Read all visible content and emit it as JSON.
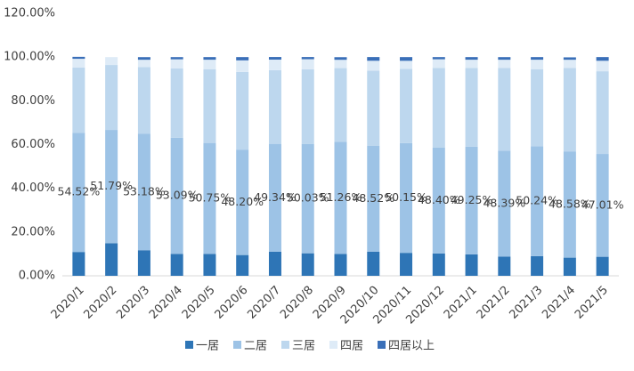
{
  "chart_data": {
    "type": "stacked_bar",
    "categories": [
      "2020/1",
      "2020/2",
      "2020/3",
      "2020/4",
      "2020/5",
      "2020/6",
      "2020/7",
      "2020/8",
      "2020/9",
      "2020/10",
      "2020/11",
      "2020/12",
      "2021/1",
      "2021/2",
      "2021/3",
      "2021/4",
      "2021/5"
    ],
    "series": [
      {
        "name": "一居",
        "color": "#2e75b6",
        "values": [
          10.9,
          14.9,
          11.7,
          10.0,
          10.0,
          9.5,
          11.0,
          10.3,
          10.0,
          11.0,
          10.5,
          10.2,
          9.8,
          8.8,
          9.0,
          8.3,
          8.7
        ]
      },
      {
        "name": "二居",
        "color": "#9dc3e6",
        "values": [
          54.52,
          51.79,
          53.18,
          53.09,
          50.75,
          48.2,
          49.34,
          50.03,
          51.26,
          48.52,
          50.15,
          48.4,
          49.25,
          48.39,
          50.24,
          48.58,
          47.01
        ],
        "value_labels": [
          "54.52%",
          "51.79%",
          "53.18%",
          "53.09%",
          "50.75%",
          "48.20%",
          "49.34%",
          "50.03%",
          "51.26%",
          "48.52%",
          "50.15%",
          "48.40%",
          "49.25%",
          "48.39%",
          "50.24%",
          "48.58%",
          "47.01%"
        ]
      },
      {
        "name": "三居",
        "color": "#bdd7ee",
        "values": [
          29.8,
          29.7,
          30.6,
          31.7,
          33.75,
          35.5,
          33.7,
          34.1,
          33.7,
          34.3,
          33.95,
          36.4,
          35.95,
          37.8,
          35.26,
          38.1,
          37.8
        ]
      },
      {
        "name": "四居",
        "color": "#deebf7",
        "values": [
          4.0,
          3.6,
          3.3,
          4.2,
          4.3,
          5.3,
          4.8,
          4.6,
          3.8,
          4.5,
          3.7,
          4.0,
          3.8,
          3.8,
          4.3,
          3.8,
          4.8
        ]
      },
      {
        "name": "四居以上",
        "color": "#3a6fb8",
        "values": [
          0.9,
          0,
          1.2,
          1.0,
          1.2,
          1.5,
          1.2,
          1.0,
          1.2,
          1.7,
          1.7,
          1.0,
          1.2,
          1.2,
          1.2,
          1.1,
          1.7
        ]
      }
    ],
    "ylim": [
      0,
      120
    ],
    "yticks": [
      {
        "value": 0,
        "label": "0.00%"
      },
      {
        "value": 20,
        "label": "20.00%"
      },
      {
        "value": 40,
        "label": "40.00%"
      },
      {
        "value": 60,
        "label": "60.00%"
      },
      {
        "value": 80,
        "label": "80.00%"
      },
      {
        "value": 100,
        "label": "100.00%"
      },
      {
        "value": 120,
        "label": "120.00%"
      }
    ],
    "grid": false,
    "legend": "bottom"
  }
}
